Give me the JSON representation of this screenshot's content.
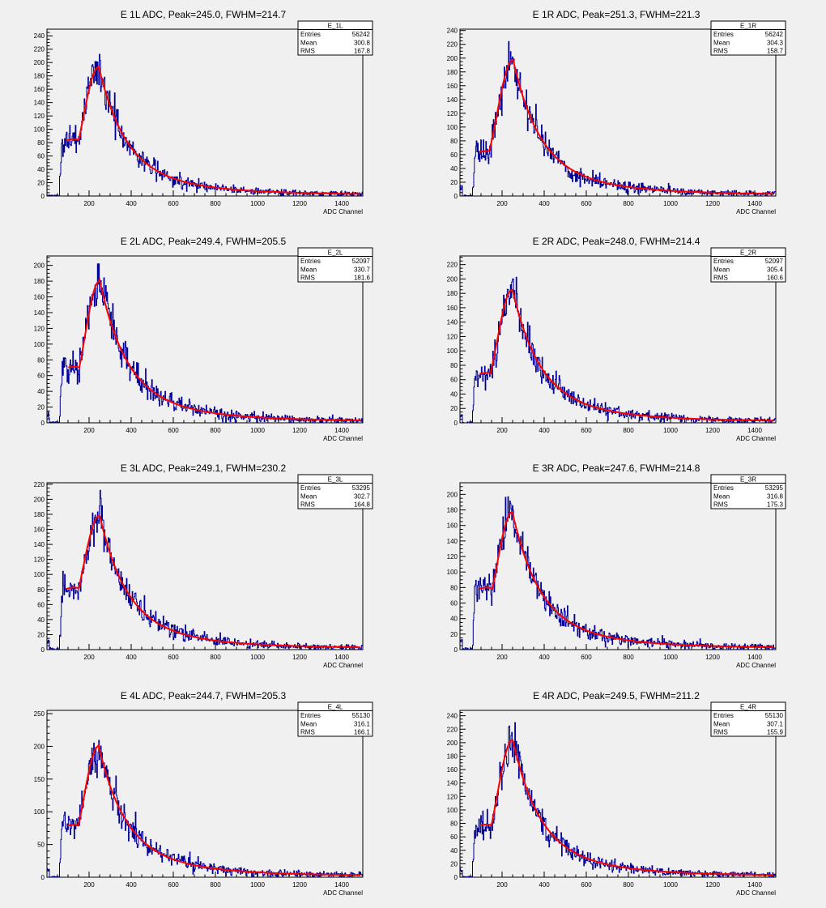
{
  "chart_data": [
    {
      "type": "histogram",
      "title": "E 1L ADC, Peak=245.0, FWHM=214.7",
      "xlabel": "ADC Channel",
      "xlim": [
        0,
        1500
      ],
      "ylim": [
        0,
        250
      ],
      "xticks": [
        200,
        400,
        600,
        800,
        1000,
        1200,
        1400
      ],
      "yticks": [
        0,
        20,
        40,
        60,
        80,
        100,
        120,
        140,
        160,
        180,
        200,
        220,
        240
      ],
      "stats": {
        "name": "E_1L",
        "entries": "56242",
        "mean": "300.8",
        "rms": "167.8"
      },
      "peak": 245.0,
      "fwhm": 214.7,
      "amp": 193,
      "shoulder": 98,
      "edge": 58,
      "noise_max": 236,
      "series": [
        {
          "color": "#000099"
        },
        {
          "color": "#ff0000"
        }
      ]
    },
    {
      "type": "histogram",
      "title": "E 1R ADC, Peak=251.3, FWHM=221.3",
      "xlabel": "ADC Channel",
      "xlim": [
        0,
        1500
      ],
      "ylim": [
        0,
        242
      ],
      "xticks": [
        200,
        400,
        600,
        800,
        1000,
        1200,
        1400
      ],
      "yticks": [
        0,
        20,
        40,
        60,
        80,
        100,
        120,
        140,
        160,
        180,
        200,
        220,
        240
      ],
      "stats": {
        "name": "E_1R",
        "entries": "56242",
        "mean": "304.3",
        "rms": "158.7"
      },
      "peak": 251.3,
      "fwhm": 221.3,
      "amp": 197,
      "shoulder": 75,
      "edge": 58,
      "noise_max": 231,
      "series": [
        {
          "color": "#000099"
        },
        {
          "color": "#ff0000"
        }
      ]
    },
    {
      "type": "histogram",
      "title": "E 2L ADC, Peak=249.4, FWHM=205.5",
      "xlabel": "ADC Channel",
      "xlim": [
        0,
        1500
      ],
      "ylim": [
        0,
        212
      ],
      "xticks": [
        200,
        400,
        600,
        800,
        1000,
        1200,
        1400
      ],
      "yticks": [
        0,
        20,
        40,
        60,
        80,
        100,
        120,
        140,
        160,
        180,
        200
      ],
      "stats": {
        "name": "E_2L",
        "entries": "52097",
        "mean": "330.7",
        "rms": "181.6"
      },
      "peak": 249.4,
      "fwhm": 205.5,
      "amp": 180,
      "shoulder": 82,
      "edge": 58,
      "noise_max": 202,
      "series": [
        {
          "color": "#000099"
        },
        {
          "color": "#ff0000"
        }
      ]
    },
    {
      "type": "histogram",
      "title": "E 2R ADC, Peak=248.0, FWHM=214.4",
      "xlabel": "ADC Channel",
      "xlim": [
        0,
        1500
      ],
      "ylim": [
        0,
        232
      ],
      "xticks": [
        200,
        400,
        600,
        800,
        1000,
        1200,
        1400
      ],
      "yticks": [
        0,
        20,
        40,
        60,
        80,
        100,
        120,
        140,
        160,
        180,
        200,
        220
      ],
      "stats": {
        "name": "E_2R",
        "entries": "52097",
        "mean": "305.4",
        "rms": "160.6"
      },
      "peak": 248.0,
      "fwhm": 214.4,
      "amp": 185,
      "shoulder": 80,
      "edge": 58,
      "noise_max": 225,
      "series": [
        {
          "color": "#000099"
        },
        {
          "color": "#ff0000"
        }
      ]
    },
    {
      "type": "histogram",
      "title": "E 3L ADC, Peak=249.1, FWHM=230.2",
      "xlabel": "ADC Channel",
      "xlim": [
        0,
        1500
      ],
      "ylim": [
        0,
        222
      ],
      "xticks": [
        200,
        400,
        600,
        800,
        1000,
        1200,
        1400
      ],
      "yticks": [
        0,
        20,
        40,
        60,
        80,
        100,
        120,
        140,
        160,
        180,
        200,
        220
      ],
      "stats": {
        "name": "E_3L",
        "entries": "53295",
        "mean": "302.7",
        "rms": "164.8"
      },
      "peak": 249.1,
      "fwhm": 230.2,
      "amp": 178,
      "shoulder": 95,
      "edge": 58,
      "noise_max": 212,
      "series": [
        {
          "color": "#000099"
        },
        {
          "color": "#ff0000"
        }
      ]
    },
    {
      "type": "histogram",
      "title": "E 3R ADC, Peak=247.6, FWHM=214.8",
      "xlabel": "ADC Channel",
      "xlim": [
        0,
        1500
      ],
      "ylim": [
        0,
        215
      ],
      "xticks": [
        200,
        400,
        600,
        800,
        1000,
        1200,
        1400
      ],
      "yticks": [
        0,
        20,
        40,
        60,
        80,
        100,
        120,
        140,
        160,
        180,
        200
      ],
      "stats": {
        "name": "E_3R",
        "entries": "53295",
        "mean": "316.8",
        "rms": "175.3"
      },
      "peak": 247.6,
      "fwhm": 214.8,
      "amp": 177,
      "shoulder": 92,
      "edge": 58,
      "noise_max": 207,
      "series": [
        {
          "color": "#000099"
        },
        {
          "color": "#ff0000"
        }
      ]
    },
    {
      "type": "histogram",
      "title": "E 4L ADC, Peak=244.7, FWHM=205.3",
      "xlabel": "ADC Channel",
      "xlim": [
        0,
        1500
      ],
      "ylim": [
        0,
        255
      ],
      "xticks": [
        200,
        400,
        600,
        800,
        1000,
        1200,
        1400
      ],
      "yticks": [
        0,
        50,
        100,
        150,
        200,
        250
      ],
      "stats": {
        "name": "E_4L",
        "entries": "55130",
        "mean": "316.1",
        "rms": "166.1"
      },
      "peak": 244.7,
      "fwhm": 205.3,
      "amp": 200,
      "shoulder": 92,
      "edge": 58,
      "noise_max": 240,
      "series": [
        {
          "color": "#000099"
        },
        {
          "color": "#ff0000"
        }
      ]
    },
    {
      "type": "histogram",
      "title": "E 4R ADC, Peak=249.5, FWHM=211.2",
      "xlabel": "ADC Channel",
      "xlim": [
        0,
        1500
      ],
      "ylim": [
        0,
        248
      ],
      "xticks": [
        200,
        400,
        600,
        800,
        1000,
        1200,
        1400
      ],
      "yticks": [
        0,
        20,
        40,
        60,
        80,
        100,
        120,
        140,
        160,
        180,
        200,
        220,
        240
      ],
      "stats": {
        "name": "E_4R",
        "entries": "55130",
        "mean": "307.1",
        "rms": "155.9"
      },
      "peak": 249.5,
      "fwhm": 211.2,
      "amp": 204,
      "shoulder": 90,
      "edge": 58,
      "noise_max": 236,
      "series": [
        {
          "color": "#000099"
        },
        {
          "color": "#ff0000"
        }
      ]
    }
  ],
  "labels": {
    "entries": "Entries",
    "mean": "Mean",
    "rms": "RMS"
  }
}
